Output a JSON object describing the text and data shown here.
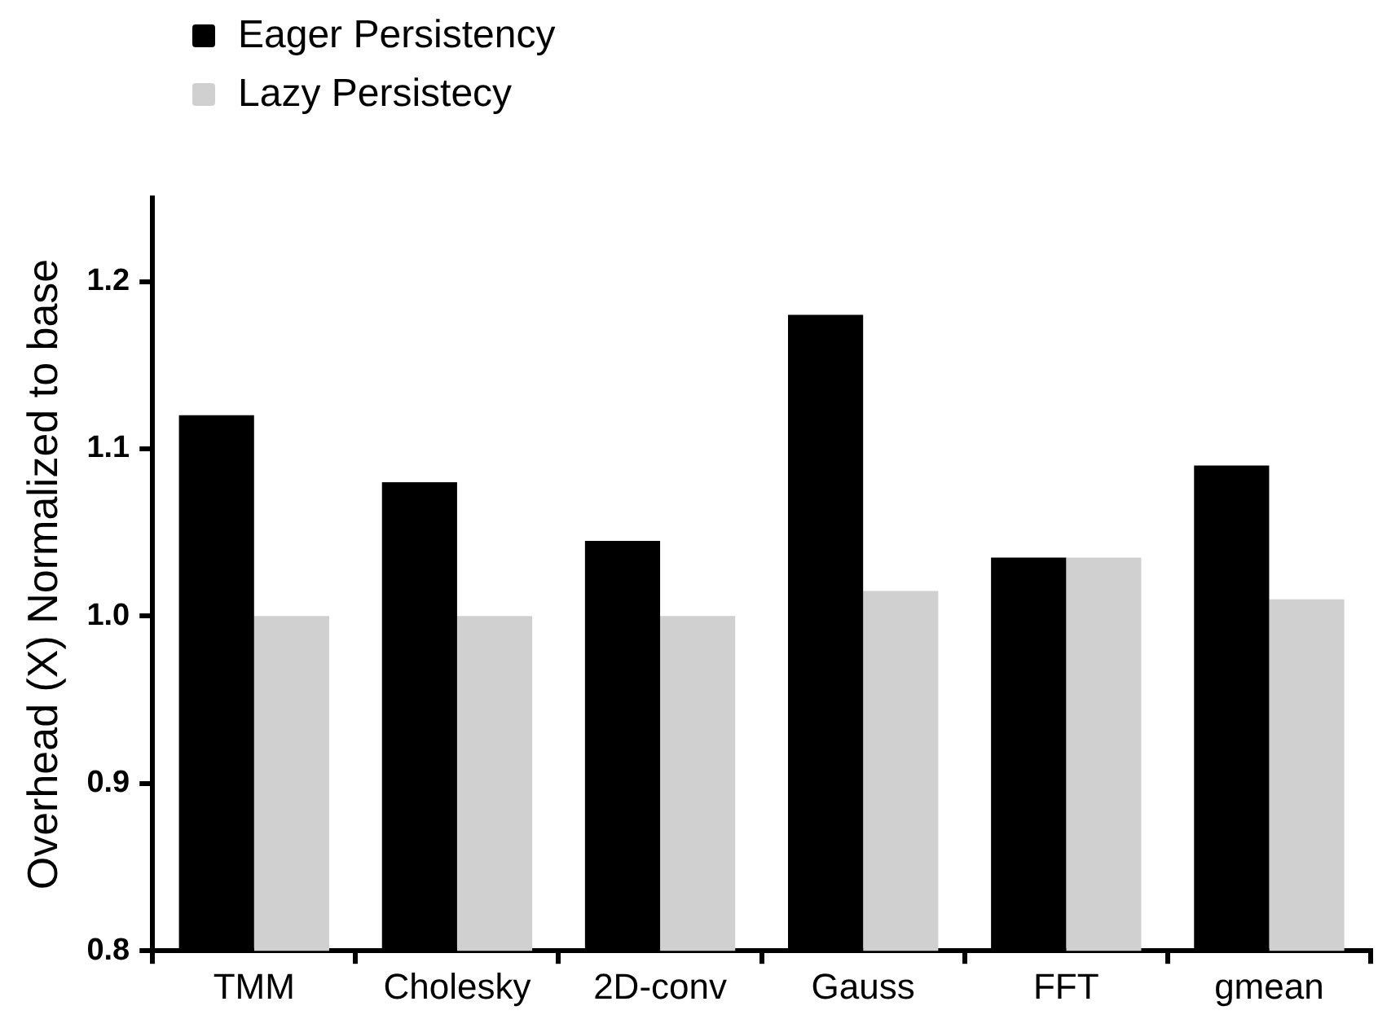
{
  "chart_data": {
    "type": "bar",
    "ylabel": "Overhead (X) Normalized to base",
    "categories": [
      "TMM",
      "Cholesky",
      "2D-conv",
      "Gauss",
      "FFT",
      "gmean"
    ],
    "series": [
      {
        "name": "Eager Persistency",
        "color": "#000000",
        "values": [
          1.12,
          1.08,
          1.045,
          1.18,
          1.035,
          1.09
        ]
      },
      {
        "name": "Lazy Persistecy",
        "color": "#d0d0d0",
        "values": [
          1.0,
          1.0,
          1.0,
          1.015,
          1.035,
          1.01
        ]
      }
    ],
    "ylim": [
      0.8,
      1.25
    ],
    "yticks": [
      {
        "value": 0.8,
        "label": "0.8"
      },
      {
        "value": 0.9,
        "label": "0.9"
      },
      {
        "value": 1.0,
        "label": "1.0"
      },
      {
        "value": 1.1,
        "label": "1.1"
      },
      {
        "value": 1.2,
        "label": "1.2"
      }
    ],
    "grid": false,
    "legend": "top left"
  }
}
